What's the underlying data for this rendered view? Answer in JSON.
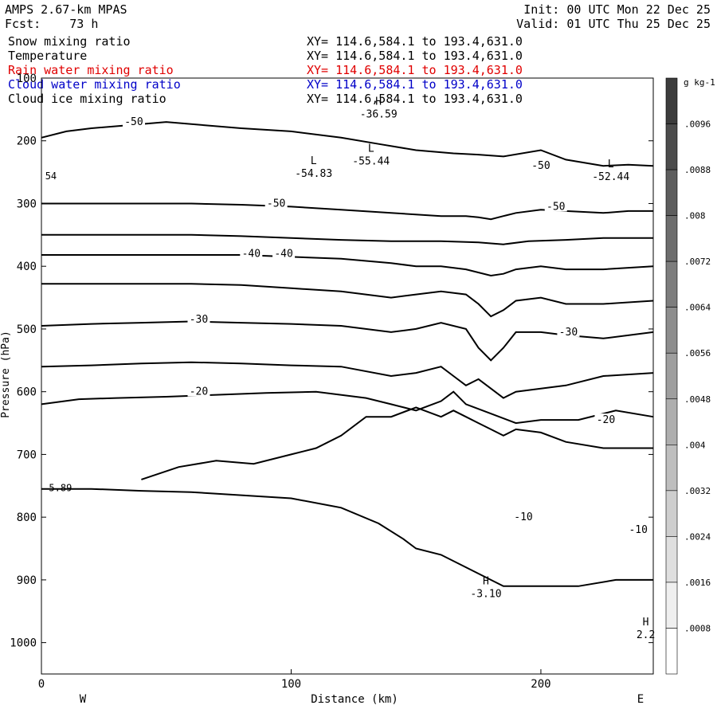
{
  "header": {
    "model": "AMPS 2.67-km MPAS",
    "fcst": "Fcst:    73 h",
    "init": "Init: 00 UTC Mon 22 Dec 25",
    "valid": "Valid: 01 UTC Thu 25 Dec 25"
  },
  "fields": [
    {
      "name": "Snow mixing ratio",
      "xy": "XY= 114.6,584.1 to 193.4,631.0",
      "color": "#000000"
    },
    {
      "name": "Temperature",
      "xy": "XY= 114.6,584.1 to 193.4,631.0",
      "color": "#000000"
    },
    {
      "name": "Rain water mixing ratio",
      "xy": "XY= 114.6,584.1 to 193.4,631.0",
      "color": "#e00000"
    },
    {
      "name": "Cloud water mixing ratio",
      "xy": "XY= 114.6,584.1 to 193.4,631.0",
      "color": "#0000c8"
    },
    {
      "name": "Cloud ice mixing ratio",
      "xy": "XY= 114.6,584.1 to 193.4,631.0",
      "color": "#000000"
    }
  ],
  "chart_data": {
    "type": "line",
    "xlabel": "Distance (km)",
    "ylabel": "Pressure (hPa)",
    "xlim": [
      0,
      245
    ],
    "ylim": [
      1050,
      100
    ],
    "x_ticks": [
      "0",
      "100",
      "200"
    ],
    "y_ticks": [
      "100",
      "200",
      "300",
      "400",
      "500",
      "600",
      "700",
      "800",
      "900",
      "1000"
    ],
    "x_end_labels": {
      "left": "W",
      "right": "E"
    },
    "colorbar": {
      "unit": "g kg-1",
      "labels": [
        ".0096",
        ".0088",
        ".008",
        ".0072",
        ".0064",
        ".0056",
        ".0048",
        ".004",
        ".0032",
        ".0024",
        ".0016",
        ".0008"
      ]
    },
    "contour_labels": [
      {
        "text": "-50",
        "x": 37,
        "p": 170
      },
      {
        "text": "-50",
        "x": 200,
        "p": 240
      },
      {
        "text": "-50",
        "x": 94,
        "p": 300
      },
      {
        "text": "-50",
        "x": 206,
        "p": 305
      },
      {
        "text": "-40",
        "x": 84,
        "p": 380
      },
      {
        "text": "-40",
        "x": 97,
        "p": 380
      },
      {
        "text": "-30",
        "x": 63,
        "p": 485
      },
      {
        "text": "-30",
        "x": 211,
        "p": 505
      },
      {
        "text": "-20",
        "x": 63,
        "p": 600
      },
      {
        "text": "-20",
        "x": 226,
        "p": 645
      },
      {
        "text": "-10",
        "x": 193,
        "p": 800
      },
      {
        "text": "-10",
        "x": 239,
        "p": 820
      }
    ],
    "extrema": [
      {
        "mark": "H",
        "value": "-36.59",
        "x": 135,
        "p": 150
      },
      {
        "mark": "L",
        "value": "-55.44",
        "x": 132,
        "p": 225
      },
      {
        "mark": "L",
        "value": "-54.83",
        "x": 109,
        "p": 245
      },
      {
        "mark": "L",
        "value": "-52.44",
        "x": 228,
        "p": 250
      },
      {
        "mark": "H",
        "value": "-3.10",
        "x": 178,
        "p": 915
      },
      {
        "mark": "H",
        "value": "2.2",
        "x": 242,
        "p": 980
      }
    ],
    "edge_values": [
      {
        "text": "54",
        "x": 1.5,
        "p": 255
      },
      {
        "text": "5.89",
        "x": 3,
        "p": 752
      }
    ],
    "isotherms": [
      {
        "x": [
          0,
          10,
          20,
          35,
          50,
          65,
          80,
          100,
          120,
          135,
          150,
          165,
          175,
          185,
          200,
          210,
          225,
          235,
          245
        ],
        "p": [
          195,
          185,
          180,
          175,
          170,
          175,
          180,
          185,
          195,
          205,
          215,
          220,
          222,
          225,
          215,
          230,
          240,
          238,
          240
        ]
      },
      {
        "x": [
          0,
          20,
          40,
          60,
          80,
          100,
          120,
          140,
          160,
          170,
          175,
          180,
          185,
          190,
          200,
          210,
          225,
          235,
          245
        ],
        "p": [
          300,
          300,
          300,
          300,
          302,
          305,
          310,
          315,
          320,
          320,
          322,
          325,
          320,
          315,
          310,
          312,
          315,
          312,
          312
        ]
      },
      {
        "x": [
          0,
          20,
          40,
          60,
          80,
          100,
          120,
          140,
          160,
          175,
          185,
          195,
          210,
          225,
          245
        ],
        "p": [
          350,
          350,
          350,
          350,
          352,
          355,
          358,
          360,
          360,
          362,
          365,
          360,
          358,
          355,
          355
        ]
      },
      {
        "x": [
          0,
          20,
          40,
          60,
          80,
          100,
          120,
          140,
          150,
          160,
          170,
          180,
          185,
          190,
          200,
          210,
          225,
          245
        ],
        "p": [
          382,
          382,
          382,
          382,
          382,
          385,
          388,
          395,
          400,
          400,
          405,
          415,
          412,
          405,
          400,
          405,
          405,
          400
        ]
      },
      {
        "x": [
          0,
          20,
          40,
          60,
          80,
          100,
          120,
          140,
          150,
          160,
          170,
          175,
          180,
          185,
          190,
          200,
          210,
          225,
          245
        ],
        "p": [
          428,
          428,
          428,
          428,
          430,
          435,
          440,
          450,
          445,
          440,
          445,
          460,
          480,
          470,
          455,
          450,
          460,
          460,
          455
        ]
      },
      {
        "x": [
          0,
          20,
          40,
          60,
          80,
          100,
          120,
          140,
          150,
          160,
          170,
          175,
          180,
          185,
          190,
          200,
          210,
          225,
          245
        ],
        "p": [
          495,
          492,
          490,
          488,
          490,
          492,
          495,
          505,
          500,
          490,
          500,
          530,
          550,
          530,
          505,
          505,
          510,
          515,
          505
        ]
      },
      {
        "x": [
          0,
          20,
          40,
          60,
          80,
          100,
          120,
          140,
          150,
          160,
          165,
          170,
          175,
          180,
          185,
          190,
          200,
          210,
          225,
          245
        ],
        "p": [
          560,
          558,
          555,
          553,
          555,
          558,
          560,
          575,
          570,
          560,
          575,
          590,
          580,
          595,
          610,
          600,
          595,
          590,
          575,
          570
        ]
      },
      {
        "x": [
          0,
          15,
          30,
          50,
          70,
          90,
          110,
          130,
          140,
          150,
          160,
          165,
          170,
          180,
          190,
          200,
          215,
          230,
          245
        ],
        "p": [
          620,
          612,
          610,
          608,
          605,
          602,
          600,
          610,
          620,
          630,
          615,
          600,
          620,
          635,
          650,
          645,
          645,
          630,
          640
        ]
      },
      {
        "x": [
          0,
          20,
          40,
          60,
          80,
          100,
          120,
          135,
          145,
          150,
          160,
          170,
          180,
          185,
          200,
          215,
          230,
          245
        ],
        "p": [
          755,
          755,
          758,
          760,
          765,
          770,
          785,
          810,
          835,
          850,
          860,
          880,
          900,
          910,
          910,
          910,
          900,
          900
        ]
      },
      {
        "x": [
          40,
          55,
          70,
          85,
          100,
          110,
          120,
          130,
          140,
          150,
          160,
          165,
          170,
          175,
          180,
          185,
          190,
          200,
          210,
          225,
          245
        ],
        "p": [
          740,
          720,
          710,
          715,
          700,
          690,
          670,
          640,
          640,
          625,
          640,
          630,
          640,
          650,
          660,
          670,
          660,
          665,
          680,
          690,
          690
        ]
      }
    ]
  }
}
